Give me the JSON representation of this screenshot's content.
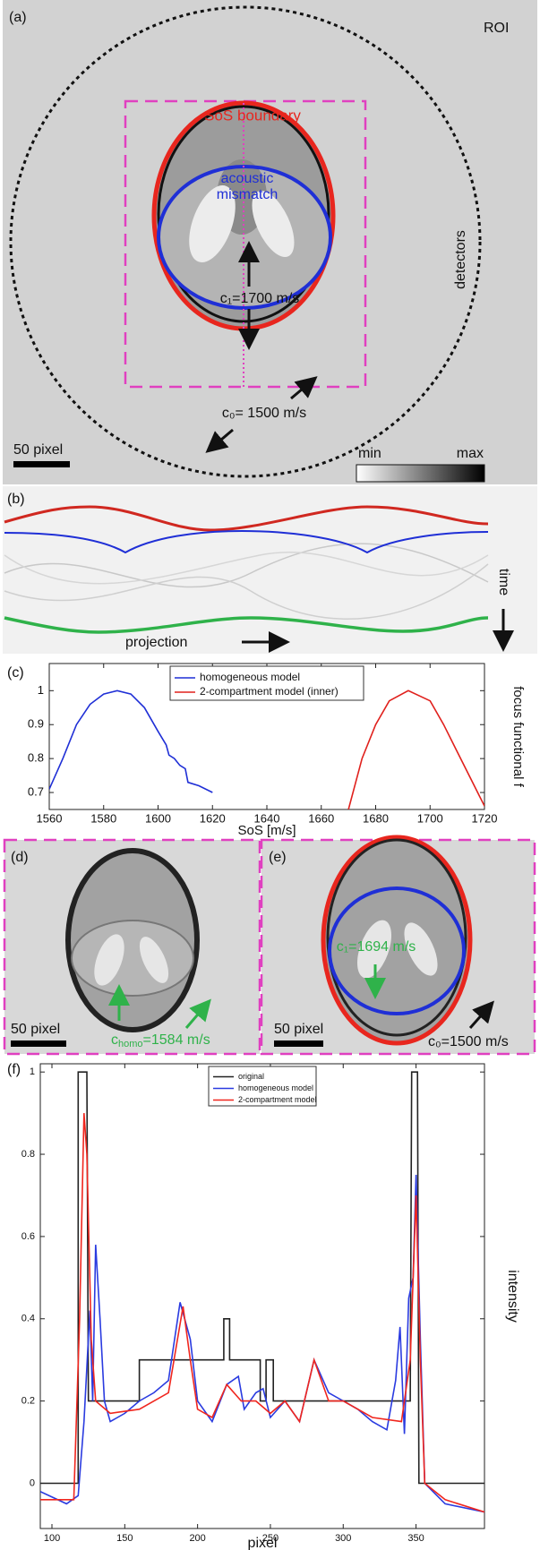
{
  "panels": {
    "a": {
      "label": "(a)",
      "roi": "ROI",
      "sos_boundary": "SoS boundary",
      "acoustic_mismatch": [
        "acoustic",
        "mismatch"
      ],
      "c1": "c₁=1700 m/s",
      "c0": "c₀= 1500 m/s",
      "detectors": "detectors",
      "scale_bar": "50 pixel",
      "colorbar_min": "min",
      "colorbar_max": "max"
    },
    "b": {
      "label": "(b)",
      "time": "time",
      "projection": "projection"
    },
    "d": {
      "label": "(d)",
      "scale_bar": "50 pixel",
      "c_homo": [
        "c",
        "homo",
        "=1584 m/s"
      ]
    },
    "e": {
      "label": "(e)",
      "scale_bar": "50 pixel",
      "c1": "c₁=1694 m/s",
      "c0": "c₀=1500 m/s"
    }
  },
  "chart_data": [
    {
      "type": "line",
      "panel_label": "(c)",
      "x_label": "SoS [m/s]",
      "y_label": "focus functional f",
      "xlim": [
        1560,
        1720
      ],
      "xticks": [
        1560,
        1580,
        1600,
        1620,
        1640,
        1660,
        1680,
        1700,
        1720
      ],
      "ylim": [
        0.65,
        1.08
      ],
      "yticks": [
        0.7,
        0.8,
        0.9,
        1
      ],
      "legend": "upper center",
      "series": [
        {
          "name": "homogeneous model",
          "color": "#1f2fd6",
          "x": [
            1560,
            1565,
            1570,
            1575,
            1580,
            1585,
            1590,
            1595,
            1600,
            1603,
            1604,
            1606,
            1608,
            1610,
            1611,
            1615,
            1620
          ],
          "values": [
            0.71,
            0.8,
            0.9,
            0.96,
            0.99,
            1.0,
            0.99,
            0.95,
            0.88,
            0.84,
            0.81,
            0.8,
            0.78,
            0.77,
            0.73,
            0.72,
            0.7
          ]
        },
        {
          "name": "2-compartment model (inner)",
          "color": "#e0201c",
          "x": [
            1670,
            1675,
            1680,
            1685,
            1692,
            1700,
            1705,
            1710,
            1715,
            1720
          ],
          "values": [
            0.65,
            0.8,
            0.9,
            0.97,
            1.0,
            0.97,
            0.9,
            0.82,
            0.74,
            0.66
          ]
        }
      ]
    },
    {
      "type": "line",
      "panel_label": "(f)",
      "x_label": "pixel",
      "y_label": "intensity",
      "xlim": [
        92,
        397
      ],
      "xticks": [
        100,
        150,
        200,
        250,
        300,
        350
      ],
      "ylim": [
        -0.11,
        1.02
      ],
      "yticks": [
        0,
        0.2,
        0.4,
        0.6,
        0.8,
        1
      ],
      "legend": "upper center",
      "series": [
        {
          "name": "original",
          "color": "#222222",
          "x": [
            92,
            118,
            118,
            124,
            125,
            160,
            160,
            218,
            218,
            222,
            222,
            243,
            243,
            247,
            247,
            252,
            252,
            346,
            347,
            351,
            352,
            397
          ],
          "values": [
            0,
            0,
            1,
            1,
            0.2,
            0.2,
            0.3,
            0.3,
            0.4,
            0.4,
            0.3,
            0.3,
            0.2,
            0.2,
            0.3,
            0.3,
            0.2,
            0.2,
            1,
            1,
            0,
            0
          ]
        },
        {
          "name": "homogeneous model",
          "color": "#2a3be0",
          "x": [
            92,
            110,
            118,
            122,
            126,
            128,
            130,
            133,
            136,
            140,
            150,
            160,
            170,
            180,
            188,
            195,
            200,
            210,
            220,
            228,
            232,
            240,
            245,
            250,
            260,
            270,
            280,
            290,
            300,
            310,
            320,
            330,
            336,
            339,
            342,
            345,
            348,
            350,
            353,
            356,
            370,
            397
          ],
          "values": [
            -0.02,
            -0.05,
            -0.03,
            0.15,
            0.42,
            0.2,
            0.58,
            0.4,
            0.2,
            0.15,
            0.17,
            0.2,
            0.22,
            0.25,
            0.44,
            0.35,
            0.2,
            0.15,
            0.24,
            0.26,
            0.18,
            0.22,
            0.23,
            0.16,
            0.2,
            0.15,
            0.3,
            0.22,
            0.2,
            0.18,
            0.15,
            0.13,
            0.25,
            0.38,
            0.12,
            0.45,
            0.5,
            0.75,
            0.35,
            0,
            -0.05,
            -0.07
          ]
        },
        {
          "name": "2-compartment model",
          "color": "#f0261e",
          "x": [
            92,
            115,
            119,
            122,
            124,
            127,
            130,
            140,
            160,
            180,
            190,
            195,
            200,
            210,
            220,
            230,
            240,
            250,
            260,
            270,
            280,
            290,
            300,
            320,
            340,
            346,
            350,
            353,
            356,
            370,
            397
          ],
          "values": [
            -0.04,
            -0.04,
            0.4,
            0.9,
            0.8,
            0.35,
            0.2,
            0.17,
            0.18,
            0.22,
            0.43,
            0.3,
            0.18,
            0.16,
            0.24,
            0.2,
            0.2,
            0.17,
            0.2,
            0.15,
            0.3,
            0.2,
            0.2,
            0.16,
            0.15,
            0.3,
            0.7,
            0.3,
            0,
            -0.04,
            -0.07
          ]
        }
      ]
    }
  ]
}
